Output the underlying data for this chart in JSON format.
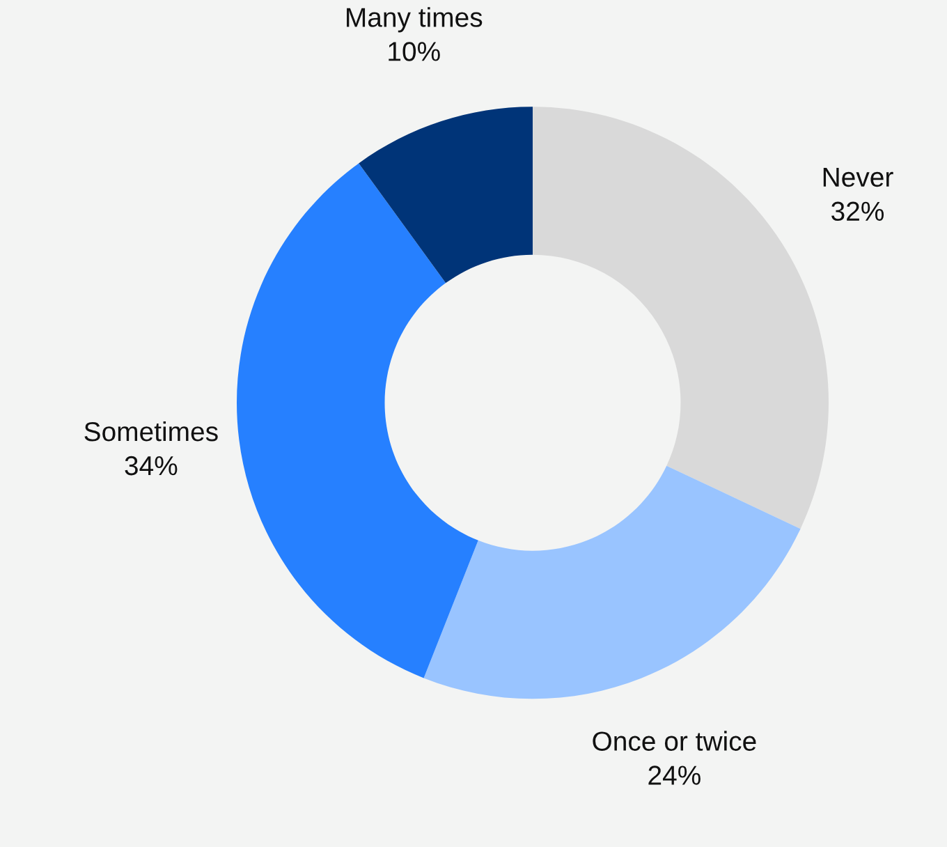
{
  "chart_data": {
    "type": "donut",
    "categories": [
      "Never",
      "Once or twice",
      "Sometimes",
      "Many times"
    ],
    "values": [
      32,
      24,
      34,
      10
    ],
    "value_labels": [
      "32%",
      "24%",
      "34%",
      "10%"
    ],
    "colors": [
      "#d9d9d9",
      "#99c4ff",
      "#2680ff",
      "#003478"
    ],
    "legend": false
  }
}
